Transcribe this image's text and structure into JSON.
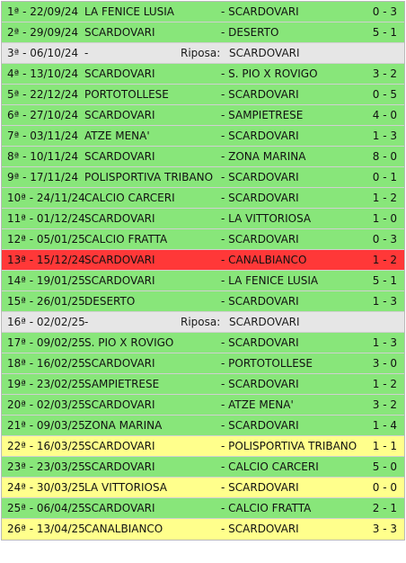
{
  "colors": {
    "win": "#88e67a",
    "draw": "#ffff8c",
    "loss": "#ff3838",
    "rest": "#e6e6e6"
  },
  "matches": [
    {
      "round": "1ª - 22/09/24",
      "home": "LA FENICE LUSIA",
      "away": "- SCARDOVARI",
      "score": "0 - 3",
      "result": "win"
    },
    {
      "round": "2ª - 29/09/24",
      "home": "SCARDOVARI",
      "away": "- DESERTO",
      "score": "5 - 1",
      "result": "win"
    },
    {
      "round": "3ª - 06/10/24",
      "rest": true,
      "dash": "-",
      "riposa_label": "Riposa:",
      "riposa_team": "SCARDOVARI",
      "result": "rest"
    },
    {
      "round": "4ª - 13/10/24",
      "home": "SCARDOVARI",
      "away": "- S. PIO X ROVIGO",
      "score": "3 - 2",
      "result": "win"
    },
    {
      "round": "5ª - 22/12/24",
      "home": "PORTOTOLLESE",
      "away": "- SCARDOVARI",
      "score": "0 - 5",
      "result": "win"
    },
    {
      "round": "6ª - 27/10/24",
      "home": "SCARDOVARI",
      "away": "- SAMPIETRESE",
      "score": "4 - 0",
      "result": "win"
    },
    {
      "round": "7ª - 03/11/24",
      "home": "ATZE MENA'",
      "away": "- SCARDOVARI",
      "score": "1 - 3",
      "result": "win"
    },
    {
      "round": "8ª - 10/11/24",
      "home": "SCARDOVARI",
      "away": "- ZONA MARINA",
      "score": "8 - 0",
      "result": "win"
    },
    {
      "round": "9ª - 17/11/24",
      "home": "POLISPORTIVA TRIBANO",
      "away": "- SCARDOVARI",
      "score": "0 - 1",
      "result": "win"
    },
    {
      "round": "10ª - 24/11/24",
      "home": "CALCIO CARCERI",
      "away": "- SCARDOVARI",
      "score": "1 - 2",
      "result": "win"
    },
    {
      "round": "11ª - 01/12/24",
      "home": "SCARDOVARI",
      "away": "- LA VITTORIOSA",
      "score": "1 - 0",
      "result": "win"
    },
    {
      "round": "12ª - 05/01/25",
      "home": "CALCIO FRATTA",
      "away": "- SCARDOVARI",
      "score": "0 - 3",
      "result": "win"
    },
    {
      "round": "13ª - 15/12/24",
      "home": "SCARDOVARI",
      "away": "- CANALBIANCO",
      "score": "1 - 2",
      "result": "loss"
    },
    {
      "round": "14ª - 19/01/25",
      "home": "SCARDOVARI",
      "away": "- LA FENICE LUSIA",
      "score": "5 - 1",
      "result": "win"
    },
    {
      "round": "15ª - 26/01/25",
      "home": "DESERTO",
      "away": "- SCARDOVARI",
      "score": "1 - 3",
      "result": "win"
    },
    {
      "round": "16ª - 02/02/25",
      "rest": true,
      "dash": "-",
      "riposa_label": "Riposa:",
      "riposa_team": "SCARDOVARI",
      "result": "rest"
    },
    {
      "round": "17ª - 09/02/25",
      "home": "S. PIO X ROVIGO",
      "away": "- SCARDOVARI",
      "score": "1 - 3",
      "result": "win"
    },
    {
      "round": "18ª - 16/02/25",
      "home": "SCARDOVARI",
      "away": "- PORTOTOLLESE",
      "score": "3 - 0",
      "result": "win"
    },
    {
      "round": "19ª - 23/02/25",
      "home": "SAMPIETRESE",
      "away": "- SCARDOVARI",
      "score": "1 - 2",
      "result": "win"
    },
    {
      "round": "20ª - 02/03/25",
      "home": "SCARDOVARI",
      "away": "- ATZE MENA'",
      "score": "3 - 2",
      "result": "win"
    },
    {
      "round": "21ª - 09/03/25",
      "home": "ZONA MARINA",
      "away": "- SCARDOVARI",
      "score": "1 - 4",
      "result": "win"
    },
    {
      "round": "22ª - 16/03/25",
      "home": "SCARDOVARI",
      "away": "- POLISPORTIVA TRIBANO",
      "score": "1 - 1",
      "result": "draw"
    },
    {
      "round": "23ª - 23/03/25",
      "home": "SCARDOVARI",
      "away": "- CALCIO CARCERI",
      "score": "5 - 0",
      "result": "win"
    },
    {
      "round": "24ª - 30/03/25",
      "home": "LA VITTORIOSA",
      "away": "- SCARDOVARI",
      "score": "0 - 0",
      "result": "draw"
    },
    {
      "round": "25ª - 06/04/25",
      "home": "SCARDOVARI",
      "away": "- CALCIO FRATTA",
      "score": "2 - 1",
      "result": "win"
    },
    {
      "round": "26ª - 13/04/25",
      "home": "CANALBIANCO",
      "away": "- SCARDOVARI",
      "score": "3 - 3",
      "result": "draw"
    }
  ]
}
